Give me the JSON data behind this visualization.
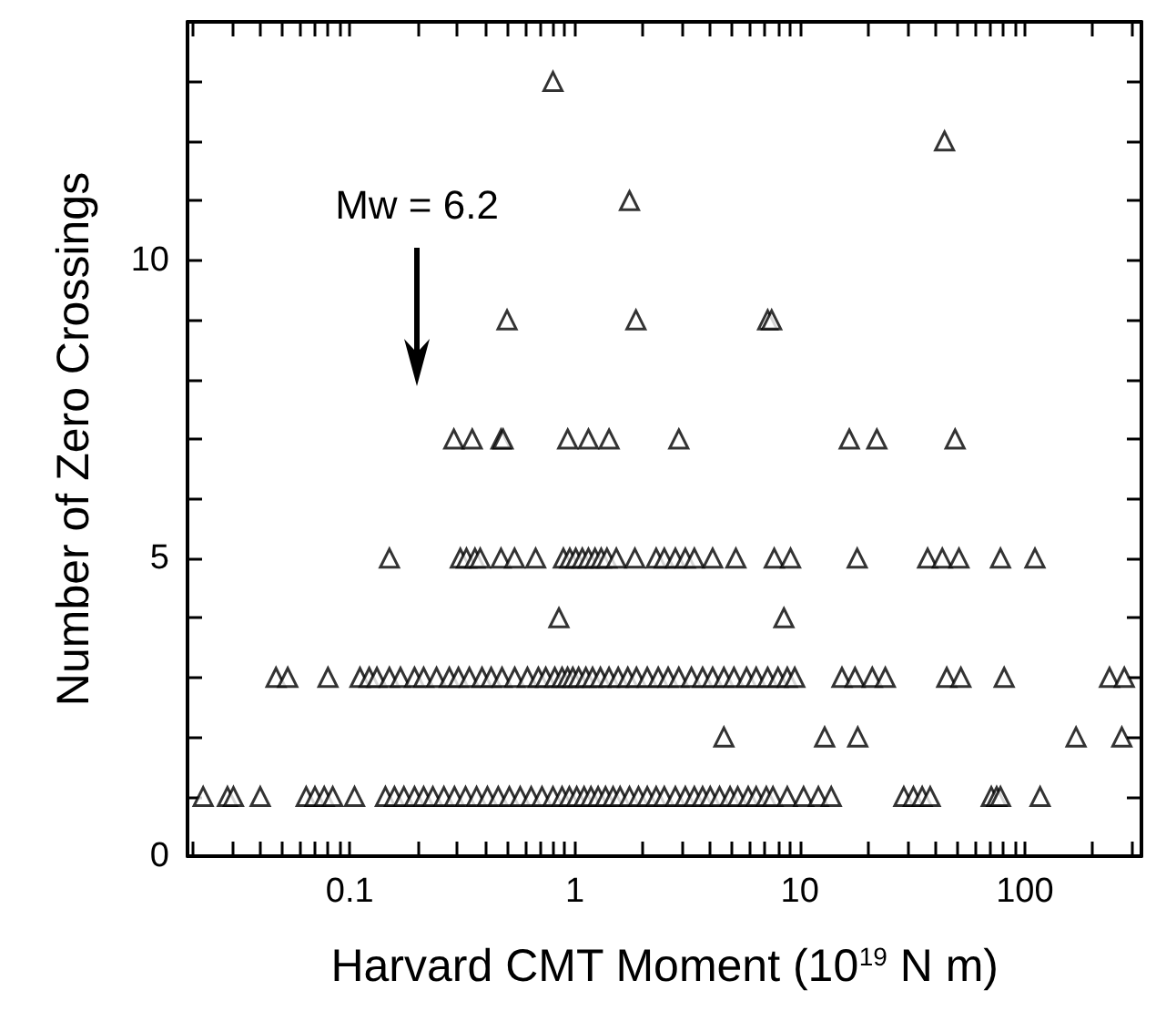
{
  "chart_data": {
    "type": "scatter",
    "xlabel": "Harvard CMT Moment (10$^{19}$ N m)",
    "ylabel": "Number of Zero Crossings",
    "log": "x",
    "grid": false,
    "marker": "triangle",
    "annotations": [
      "Mw = 6.2"
    ],
    "xlim": [
      0.019,
      330
    ],
    "ylim": [
      0,
      14
    ],
    "xticks": [
      {
        "value": 0.02,
        "label": null
      },
      {
        "value": 0.03,
        "label": null
      },
      {
        "value": 0.04,
        "label": null
      },
      {
        "value": 0.05,
        "label": null
      },
      {
        "value": 0.06,
        "label": null
      },
      {
        "value": 0.07,
        "label": null
      },
      {
        "value": 0.08,
        "label": null
      },
      {
        "value": 0.09,
        "label": null
      },
      0.1,
      {
        "value": 0.2,
        "label": null
      },
      {
        "value": 0.3,
        "label": null
      },
      {
        "value": 0.4,
        "label": null
      },
      {
        "value": 0.5,
        "label": null
      },
      {
        "value": 0.6,
        "label": null
      },
      {
        "value": 0.7,
        "label": null
      },
      {
        "value": 0.8,
        "label": null
      },
      {
        "value": 0.9,
        "label": null
      },
      1,
      {
        "value": 2,
        "label": null
      },
      {
        "value": 3,
        "label": null
      },
      {
        "value": 4,
        "label": null
      },
      {
        "value": 5,
        "label": null
      },
      {
        "value": 6,
        "label": null
      },
      {
        "value": 7,
        "label": null
      },
      {
        "value": 8,
        "label": null
      },
      {
        "value": 9,
        "label": null
      },
      10,
      {
        "value": 20,
        "label": null
      },
      {
        "value": 30,
        "label": null
      },
      {
        "value": 40,
        "label": null
      },
      {
        "value": 50,
        "label": null
      },
      {
        "value": 60,
        "label": null
      },
      {
        "value": 70,
        "label": null
      },
      {
        "value": 80,
        "label": null
      },
      {
        "value": 90,
        "label": null
      },
      100,
      {
        "value": 200,
        "label": null
      },
      {
        "value": 300,
        "label": null
      }
    ],
    "yticks": [
      0,
      {
        "value": 1,
        "label": null
      },
      {
        "value": 2,
        "label": null
      },
      {
        "value": 3,
        "label": null
      },
      {
        "value": 4,
        "label": null
      },
      5,
      {
        "value": 6,
        "label": null
      },
      {
        "value": 7,
        "label": null
      },
      {
        "value": 8,
        "label": null
      },
      {
        "value": 9,
        "label": null
      },
      10,
      {
        "value": 11,
        "label": null
      },
      {
        "value": 12,
        "label": null
      },
      {
        "value": 13,
        "label": null
      }
    ],
    "series": [
      {
        "color": "#000000",
        "x": [
          0.8,
          44,
          1.75,
          0.5,
          1.87,
          7.2,
          7.5,
          0.29,
          0.35,
          0.47,
          0.48,
          0.93,
          1.15,
          1.42,
          2.9,
          16.6,
          22,
          49,
          0.15,
          0.31,
          0.33,
          0.36,
          0.38,
          0.47,
          0.54,
          0.67,
          0.89,
          0.95,
          1.01,
          1.08,
          1.15,
          1.23,
          1.31,
          1.39,
          1.53,
          1.85,
          2.3,
          2.5,
          2.8,
          3.1,
          3.4,
          4.1,
          5.2,
          7.7,
          9.1,
          18,
          37,
          43,
          51,
          78,
          111,
          0.85,
          8.5,
          0.047,
          0.053,
          0.08,
          0.111,
          0.122,
          0.132,
          0.15,
          0.168,
          0.194,
          0.213,
          0.243,
          0.277,
          0.304,
          0.34,
          0.387,
          0.425,
          0.475,
          0.541,
          0.616,
          0.689,
          0.743,
          0.815,
          0.878,
          0.929,
          0.98,
          1.04,
          1.12,
          1.2,
          1.3,
          1.42,
          1.56,
          1.72,
          1.88,
          2.1,
          2.35,
          2.6,
          2.9,
          3.3,
          3.7,
          4.1,
          4.6,
          5.1,
          5.8,
          6.4,
          7.2,
          8,
          8.8,
          9.5,
          15.4,
          17.6,
          21,
          24,
          45,
          52,
          81,
          238,
          277,
          4.6,
          12.9,
          18.1,
          169,
          270,
          0.0223,
          0.0286,
          0.0304,
          0.04,
          0.064,
          0.07,
          0.077,
          0.084,
          0.105,
          0.144,
          0.158,
          0.174,
          0.194,
          0.213,
          0.234,
          0.262,
          0.292,
          0.327,
          0.366,
          0.409,
          0.457,
          0.512,
          0.572,
          0.64,
          0.715,
          0.8,
          0.878,
          0.946,
          1.02,
          1.1,
          1.18,
          1.27,
          1.37,
          1.48,
          1.59,
          1.75,
          1.92,
          2.1,
          2.3,
          2.5,
          2.8,
          3.1,
          3.4,
          3.7,
          4,
          4.4,
          4.9,
          5.3,
          5.9,
          6.4,
          7.1,
          7.6,
          8.8,
          10.4,
          12.1,
          13.8,
          29,
          32,
          35,
          38,
          71,
          75,
          78,
          117
        ],
        "values": [
          13,
          12,
          11,
          9,
          9,
          9,
          9,
          7,
          7,
          7,
          7,
          7,
          7,
          7,
          7,
          7,
          7,
          7,
          5,
          5,
          5,
          5,
          5,
          5,
          5,
          5,
          5,
          5,
          5,
          5,
          5,
          5,
          5,
          5,
          5,
          5,
          5,
          5,
          5,
          5,
          5,
          5,
          5,
          5,
          5,
          5,
          5,
          5,
          5,
          5,
          5,
          4,
          4,
          3,
          3,
          3,
          3,
          3,
          3,
          3,
          3,
          3,
          3,
          3,
          3,
          3,
          3,
          3,
          3,
          3,
          3,
          3,
          3,
          3,
          3,
          3,
          3,
          3,
          3,
          3,
          3,
          3,
          3,
          3,
          3,
          3,
          3,
          3,
          3,
          3,
          3,
          3,
          3,
          3,
          3,
          3,
          3,
          3,
          3,
          3,
          3,
          3,
          3,
          3,
          3,
          3,
          3,
          3,
          3,
          3,
          2,
          2,
          2,
          2,
          2,
          1,
          1,
          1,
          1,
          1,
          1,
          1,
          1,
          1,
          1,
          1,
          1,
          1,
          1,
          1,
          1,
          1,
          1,
          1,
          1,
          1,
          1,
          1,
          1,
          1,
          1,
          1,
          1,
          1,
          1,
          1,
          1,
          1,
          1,
          1,
          1,
          1,
          1,
          1,
          1,
          1,
          1,
          1,
          1,
          1,
          1,
          1,
          1,
          1,
          1,
          1,
          1,
          1,
          1,
          1,
          1,
          1,
          1,
          1,
          1,
          1,
          1,
          1,
          1
        ]
      }
    ]
  }
}
